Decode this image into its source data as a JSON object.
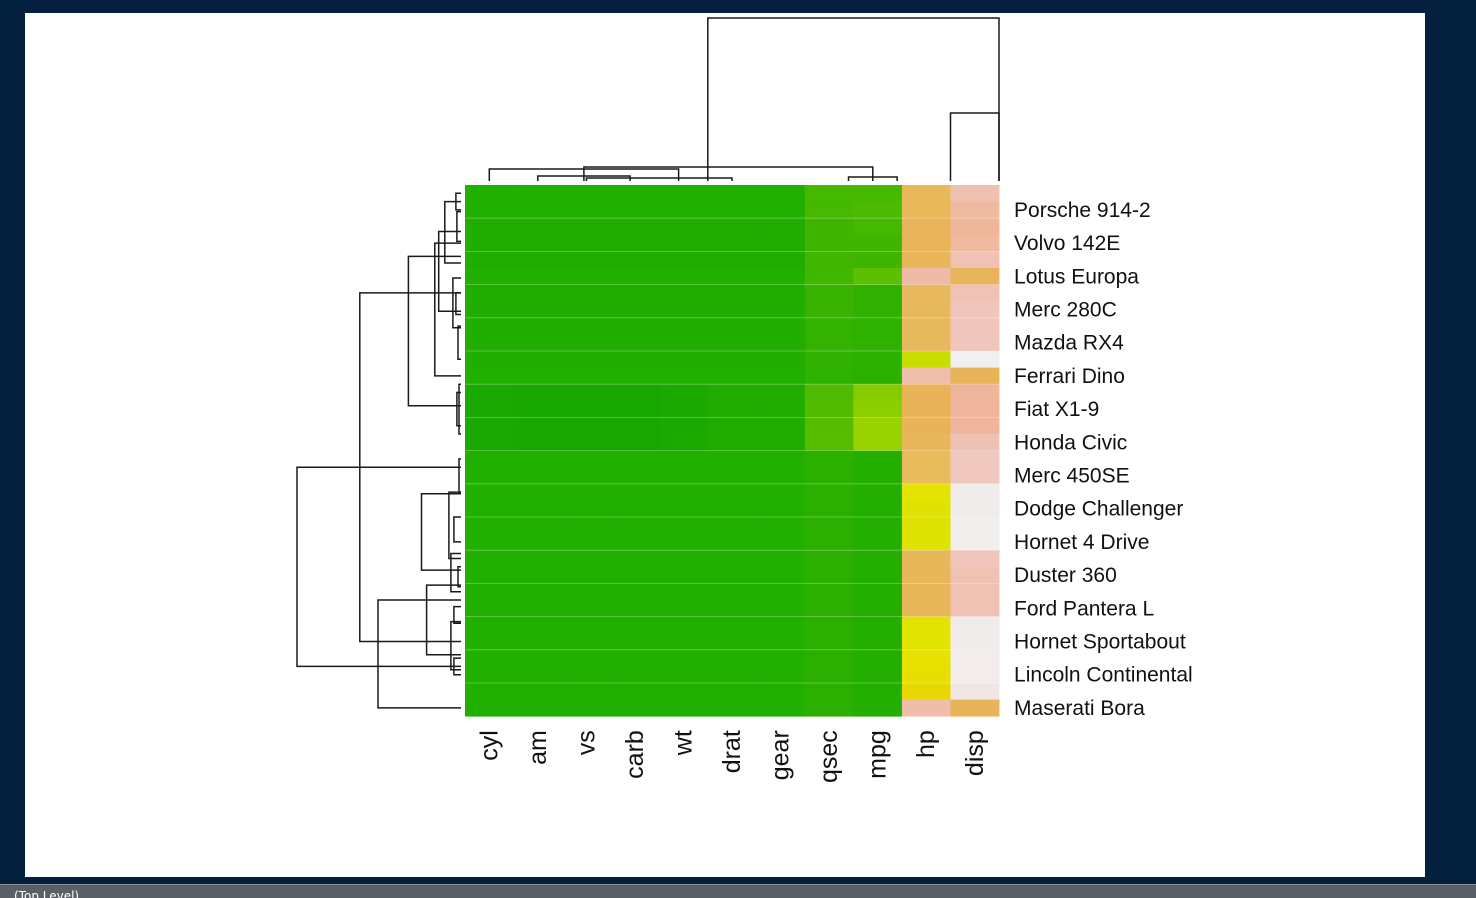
{
  "status_bar": {
    "text": "(Top Level)"
  },
  "chart_data": {
    "type": "heatmap",
    "title": "",
    "xlabel": "",
    "ylabel": "",
    "grid": false,
    "columns": [
      "cyl",
      "am",
      "vs",
      "carb",
      "wt",
      "drat",
      "gear",
      "qsec",
      "mpg",
      "hp",
      "disp"
    ],
    "rows": [
      "",
      "Porsche 914-2",
      "",
      "Volvo 142E",
      "",
      "Lotus Europa",
      "",
      "Merc 280C",
      "",
      "Mazda RX4",
      "",
      "Ferrari Dino",
      "",
      "Fiat X1-9",
      "",
      "Honda Civic",
      "",
      "Merc 450SE",
      "",
      "Dodge Challenger",
      "",
      "Hornet 4 Drive",
      "",
      "Duster 360",
      "",
      "Ford Pantera L",
      "",
      "Hornet Sportabout",
      "",
      "Lincoln Continental",
      "",
      "Maserati Bora"
    ],
    "colors": [
      [
        "#21b000",
        "#21b000",
        "#21b000",
        "#21b000",
        "#21b000",
        "#21b000",
        "#21b000",
        "#45b800",
        "#45b800",
        "#e8b85a",
        "#efc1b0"
      ],
      [
        "#21b000",
        "#21b000",
        "#21b000",
        "#21b000",
        "#21b000",
        "#21b000",
        "#21b000",
        "#45b800",
        "#4cbb00",
        "#e8b85a",
        "#efbaa0"
      ],
      [
        "#20ad00",
        "#20ad00",
        "#20ad00",
        "#20ad00",
        "#20ad00",
        "#20ad00",
        "#20ad00",
        "#3fb500",
        "#45b800",
        "#e9b45a",
        "#efb69a"
      ],
      [
        "#20ad00",
        "#20ad00",
        "#20ad00",
        "#20ad00",
        "#20ad00",
        "#20ad00",
        "#20ad00",
        "#3fb500",
        "#40b500",
        "#e9b45a",
        "#efbaa0"
      ],
      [
        "#20ad00",
        "#20ad00",
        "#20ad00",
        "#20ad00",
        "#20ad00",
        "#20ad00",
        "#20ad00",
        "#40b600",
        "#3eb500",
        "#e8b75a",
        "#efc2b4"
      ],
      [
        "#21af00",
        "#21af00",
        "#21af00",
        "#21af00",
        "#21af00",
        "#21af00",
        "#21af00",
        "#42b700",
        "#5cbf00",
        "#efbba8",
        "#e9b55c"
      ],
      [
        "#20ad00",
        "#20ad00",
        "#20ad00",
        "#20ad00",
        "#20ad00",
        "#20ad00",
        "#20ad00",
        "#38b300",
        "#30b100",
        "#e7b95c",
        "#efc2b4"
      ],
      [
        "#20ad00",
        "#20ad00",
        "#20ad00",
        "#20ad00",
        "#20ad00",
        "#20ad00",
        "#20ad00",
        "#38b300",
        "#30b100",
        "#e7b95c",
        "#f0c6bc"
      ],
      [
        "#21ae00",
        "#21ae00",
        "#21ae00",
        "#21ae00",
        "#21ae00",
        "#21ae00",
        "#21ae00",
        "#33b200",
        "#2fb100",
        "#e7b95c",
        "#f0c6bc"
      ],
      [
        "#21ae00",
        "#21ae00",
        "#21ae00",
        "#21ae00",
        "#21ae00",
        "#21ae00",
        "#21ae00",
        "#33b200",
        "#2fb100",
        "#e7b95c",
        "#f0c6bc"
      ],
      [
        "#20ad00",
        "#20ad00",
        "#20ad00",
        "#20ad00",
        "#20ad00",
        "#20ad00",
        "#20ad00",
        "#31b100",
        "#2db100",
        "#c8dd00",
        "#f1f0f0"
      ],
      [
        "#22b000",
        "#22b000",
        "#22b000",
        "#22b000",
        "#22b000",
        "#22b000",
        "#22b000",
        "#2fb100",
        "#2cb000",
        "#efbeac",
        "#e8b45a"
      ],
      [
        "#1aa900",
        "#17a700",
        "#17a700",
        "#17a700",
        "#1ba900",
        "#20ad00",
        "#20ad00",
        "#4eba00",
        "#88cc00",
        "#e9b35a",
        "#efb59c"
      ],
      [
        "#1aa900",
        "#16a700",
        "#16a700",
        "#16a700",
        "#1aa900",
        "#20ad00",
        "#20ad00",
        "#52bb00",
        "#8ccf00",
        "#e9b35a",
        "#efb59c"
      ],
      [
        "#1aa900",
        "#17a700",
        "#17a700",
        "#17a700",
        "#1ba900",
        "#20ad00",
        "#20ad00",
        "#56bc00",
        "#9ad200",
        "#e9b35a",
        "#efb59c"
      ],
      [
        "#1aa900",
        "#17a700",
        "#17a700",
        "#17a700",
        "#1ba900",
        "#20ad00",
        "#20ad00",
        "#56bc00",
        "#9ad200",
        "#e8b75a",
        "#efc1b4"
      ],
      [
        "#21b000",
        "#21b000",
        "#21b000",
        "#21b000",
        "#21b000",
        "#21b000",
        "#21b000",
        "#2cb000",
        "#24ae00",
        "#e8bb5c",
        "#f0c8c0"
      ],
      [
        "#21b000",
        "#21b000",
        "#21b000",
        "#21b000",
        "#21b000",
        "#21b000",
        "#21b000",
        "#2cb000",
        "#24ae00",
        "#e8bb5c",
        "#f0c8c0"
      ],
      [
        "#21b000",
        "#21b000",
        "#21b000",
        "#21b000",
        "#21b000",
        "#21b000",
        "#21b000",
        "#2cb000",
        "#24ae00",
        "#e4e400",
        "#f1ecec"
      ],
      [
        "#21b000",
        "#21b000",
        "#21b000",
        "#21b000",
        "#21b000",
        "#21b000",
        "#21b000",
        "#2cb000",
        "#24ae00",
        "#e0e300",
        "#f1ecec"
      ],
      [
        "#21b000",
        "#21b000",
        "#21b000",
        "#21b000",
        "#21b000",
        "#21b000",
        "#21b000",
        "#2cb000",
        "#24ae00",
        "#dde200",
        "#f1eeee"
      ],
      [
        "#21b000",
        "#21b000",
        "#21b000",
        "#21b000",
        "#21b000",
        "#21b000",
        "#21b000",
        "#2cb000",
        "#24ae00",
        "#dde200",
        "#f1eeee"
      ],
      [
        "#21b000",
        "#21b000",
        "#21b000",
        "#21b000",
        "#21b000",
        "#21b000",
        "#21b000",
        "#2cb000",
        "#24ae00",
        "#e8b75a",
        "#f0c6bc"
      ],
      [
        "#21b000",
        "#21b000",
        "#21b000",
        "#21b000",
        "#21b000",
        "#21b000",
        "#21b000",
        "#2cb000",
        "#24ae00",
        "#e8b75a",
        "#f0c2b4"
      ],
      [
        "#21b000",
        "#21b000",
        "#21b000",
        "#21b000",
        "#21b000",
        "#21b000",
        "#21b000",
        "#2cb000",
        "#24ae00",
        "#e8b75a",
        "#efc2b4"
      ],
      [
        "#21b000",
        "#21b000",
        "#21b000",
        "#21b000",
        "#21b000",
        "#21b000",
        "#21b000",
        "#2cb000",
        "#24ae00",
        "#e8b75a",
        "#efc2b4"
      ],
      [
        "#21b000",
        "#21b000",
        "#21b000",
        "#21b000",
        "#21b000",
        "#21b000",
        "#21b000",
        "#2cb000",
        "#24ae00",
        "#e3e300",
        "#f1ecec"
      ],
      [
        "#21b000",
        "#21b000",
        "#21b000",
        "#21b000",
        "#21b000",
        "#21b000",
        "#21b000",
        "#2cb000",
        "#24ae00",
        "#e3e300",
        "#f1ecec"
      ],
      [
        "#21b000",
        "#21b000",
        "#21b000",
        "#21b000",
        "#21b000",
        "#21b000",
        "#21b000",
        "#2cb000",
        "#24ae00",
        "#e6e100",
        "#f2ecec"
      ],
      [
        "#21b000",
        "#21b000",
        "#21b000",
        "#21b000",
        "#21b000",
        "#21b000",
        "#21b000",
        "#2cb000",
        "#24ae00",
        "#e6df00",
        "#f2ecec"
      ],
      [
        "#21b000",
        "#21b000",
        "#21b000",
        "#21b000",
        "#21b000",
        "#21b000",
        "#21b000",
        "#2cb000",
        "#24ae00",
        "#e8d800",
        "#f1e6e6"
      ],
      [
        "#21b000",
        "#21b000",
        "#21b000",
        "#21b000",
        "#21b000",
        "#21b000",
        "#21b000",
        "#2cb000",
        "#24ae00",
        "#efbeaa",
        "#e9b35a"
      ]
    ],
    "col_dendrogram": [
      {
        "left": 5,
        "right": 11,
        "height": 1.0
      },
      {
        "left": 2.45,
        "right": 8.4,
        "height": 0.0858
      },
      {
        "left": 7.9,
        "right": 8.9,
        "height": 0.0245
      },
      {
        "left": 10,
        "right": 11,
        "height": 0.4172
      },
      {
        "left": 0.5,
        "right": 4.4,
        "height": 0.0736
      },
      {
        "left": 1.5,
        "right": 3.4,
        "height": 0.0307
      },
      {
        "left": 2.5,
        "right": 5.5,
        "height": 0.0184
      }
    ],
    "row_dendrogram": [
      {
        "top": 17.0,
        "bottom": 29.0,
        "height": 1.0
      },
      {
        "top": 6.5,
        "bottom": 27.5,
        "height": 0.617
      },
      {
        "top": 25.0,
        "bottom": 31.5,
        "height": 0.506
      },
      {
        "top": 4.3,
        "bottom": 13.3,
        "height": 0.321
      },
      {
        "top": 18.6,
        "bottom": 23.2,
        "height": 0.241
      },
      {
        "top": 24.1,
        "bottom": 28.3,
        "height": 0.21
      },
      {
        "top": 3.5,
        "bottom": 11.5,
        "height": 0.16
      },
      {
        "top": 2.8,
        "bottom": 7.6,
        "height": 0.136
      },
      {
        "top": 1.0,
        "bottom": 4.7,
        "height": 0.099
      },
      {
        "top": 18.5,
        "bottom": 22.5,
        "height": 0.074
      },
      {
        "top": 22.2,
        "bottom": 24.5,
        "height": 0.0617
      },
      {
        "top": 26.3,
        "bottom": 29.2,
        "height": 0.0617
      },
      {
        "top": 5.6,
        "bottom": 8.6,
        "height": 0.0494
      },
      {
        "top": 20.0,
        "bottom": 21.5,
        "height": 0.0432
      },
      {
        "top": 25.4,
        "bottom": 26.4,
        "height": 0.0432
      },
      {
        "top": 28.5,
        "bottom": 29.5,
        "height": 0.0432
      },
      {
        "top": 0.5,
        "bottom": 1.5,
        "height": 0.0309
      },
      {
        "top": 6.5,
        "bottom": 7.8,
        "height": 0.0309
      },
      {
        "top": 1.6,
        "bottom": 3.4,
        "height": 0.0247
      },
      {
        "top": 12.5,
        "bottom": 14.5,
        "height": 0.0247
      },
      {
        "top": 8.5,
        "bottom": 10.5,
        "height": 0.0185
      },
      {
        "top": 23.0,
        "bottom": 24.2,
        "height": 0.0185
      },
      {
        "top": 16.5,
        "bottom": 18.5,
        "height": 0.0123
      },
      {
        "top": 12.0,
        "bottom": 15.0,
        "height": 0.0123
      }
    ]
  }
}
